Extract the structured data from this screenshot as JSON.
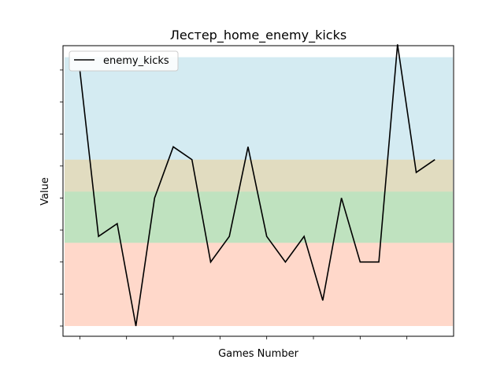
{
  "chart_data": {
    "type": "line",
    "title": "Лестер_home_enemy_kicks",
    "xlabel": "Games Number",
    "ylabel": "Value",
    "x": [
      1,
      2,
      3,
      4,
      5,
      6,
      7,
      8,
      9,
      10,
      11,
      12,
      13,
      14,
      15,
      16,
      17,
      18,
      19,
      20
    ],
    "series": [
      {
        "name": "enemy_kicks",
        "color": "#000000",
        "values": [
          15,
          8.5,
          9,
          5,
          10,
          12,
          11.5,
          7.5,
          8.5,
          12,
          8.5,
          7.5,
          8.5,
          6,
          10,
          7.5,
          7.5,
          16,
          11,
          11.5
        ]
      }
    ],
    "xlim": [
      0.1,
      21
    ],
    "ylim": [
      4.6,
      15.95
    ],
    "x_ticks": [
      1,
      3.5,
      6,
      8.5,
      11,
      13.5,
      16,
      18.5
    ],
    "y_ticks": [
      5,
      6.25,
      7.5,
      8.75,
      10,
      11.25,
      12.5,
      13.75,
      15
    ],
    "tick_labels_visible": false,
    "legend": {
      "position": "upper left"
    },
    "bands": [
      {
        "from": 5,
        "to": 8.25,
        "color": "#FF7F50",
        "alpha": 0.3
      },
      {
        "from": 8.25,
        "to": 10.25,
        "color": "#2CA02C",
        "alpha": 0.3
      },
      {
        "from": 10.25,
        "to": 11.5,
        "color": "#9A8A30",
        "alpha": 0.3
      },
      {
        "from": 11.5,
        "to": 15.5,
        "color": "#72BCD4",
        "alpha": 0.3
      }
    ]
  }
}
